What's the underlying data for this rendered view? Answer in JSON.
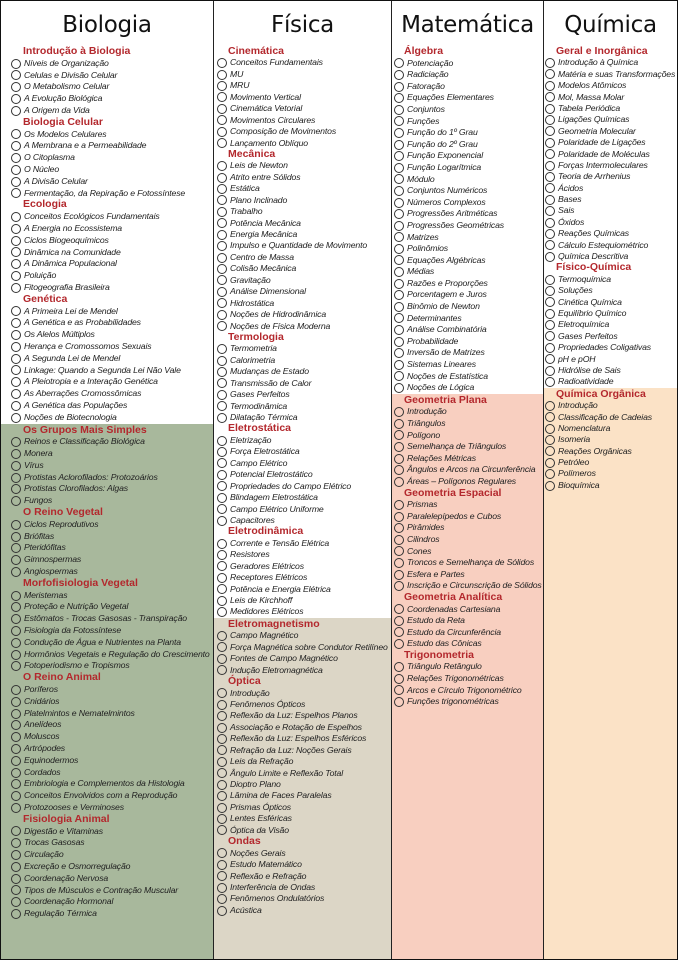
{
  "colors": {
    "section_title": "#b3282d",
    "white": "#ffffff",
    "green": "#a8b89c",
    "beige": "#dcd6c6",
    "pink": "#f8cfc0",
    "peach": "#fbe2c6"
  },
  "columns": [
    {
      "title": "Biologia",
      "groups": [
        {
          "bg": "#ffffff",
          "sections": [
            {
              "title": "Introdução à Biologia",
              "items": [
                "Níveis de Organização",
                "Celulas e Divisão Celular",
                "O Metabolismo Celular",
                "A Evolução Biológica",
                "A Origem da Vida"
              ]
            },
            {
              "title": "Biologia Celular",
              "items": [
                "Os Modelos Celulares",
                "A Membrana e a Permeabilidade",
                "O Citoplasma",
                "O Núcleo",
                "A Divisão Celular",
                "Fermentação, da Repiração e Fotossíntese"
              ]
            },
            {
              "title": "Ecologia",
              "items": [
                "Conceitos Ecológicos Fundamentais",
                "A Energia no Ecossistema",
                "Ciclos Biogeoquímicos",
                "Dinâmica na Comunidade",
                "A Dinâmica Populacional",
                "Poluição",
                "Fitogeografia Brasileira"
              ]
            },
            {
              "title": "Genética",
              "items": [
                "A Primeira Lei de Mendel",
                "A Genética e as Probabilidades",
                "Os Alelos Múltiplos",
                "Herança e Cromossomos Sexuais",
                "A Segunda Lei de Mendel",
                "Linkage: Quando a Segunda Lei Não Vale",
                "A Pleiotropia e a Interação Genética",
                "As Aberrações Cromossômicas",
                "A Genética das Populações",
                "Noções de Biotecnologia"
              ]
            }
          ]
        },
        {
          "bg": "#a8b89c",
          "sections": [
            {
              "title": "Os Grupos Mais Simples",
              "items": [
                "Reinos e Classificação Biológica",
                "Monera",
                "Vírus",
                "Protistas Aclorofilados: Protozoários",
                "Protistas Clorofilados: Algas",
                "Fungos"
              ]
            },
            {
              "title": "O Reino Vegetal",
              "items": [
                "Ciclos Reprodutivos",
                "Briófitas",
                "Pteridófitas",
                "Gimnospermas",
                "Angiospermas"
              ]
            },
            {
              "title": "Morfofisiologia Vegetal",
              "items": [
                "Meristemas",
                "Proteção e Nutrição Vegetal",
                "Estômatos - Trocas Gasosas - Transpiração",
                "Fisiologia da Fotossíntese",
                "Condução de Água e Nutrientes na Planta",
                "Hormônios Vegetais e Regulação do Crescimento",
                "Fotoperiodismo e Tropismos"
              ]
            },
            {
              "title": "O Reino Animal",
              "items": [
                "Poríferos",
                "Cnidários",
                "Platelmintos e Nematelmintos",
                "Anelídeos",
                "Moluscos",
                "Artrópodes",
                "Equinodermos",
                "Cordados",
                "Embriologia e Complementos da Histologia",
                "Conceitos Envolvidos com a Reprodução",
                "Protozooses e Verminoses"
              ]
            },
            {
              "title": "Fisiologia Animal",
              "items": [
                "Digestão e Vitaminas",
                "Trocas Gasosas",
                "Circulação",
                "Excreção e Osmorregulação",
                "Coordenação Nervosa",
                "Tipos de Músculos e Contração Muscular",
                "Coordenação Hormonal",
                "Regulação Térmica"
              ]
            }
          ]
        }
      ]
    },
    {
      "title": "Física",
      "groups": [
        {
          "bg": "#ffffff",
          "sections": [
            {
              "title": "Cinemática",
              "items": [
                "Conceitos Fundamentais",
                "MU",
                "MRU",
                "Movimento Vertical",
                "Cinemática Vetorial",
                "Movimentos Circulares",
                "Composição de Movimentos",
                "Lançamento Oblíquo"
              ]
            },
            {
              "title": "Mecânica",
              "items": [
                "Leis de Newton",
                "Atrito entre Sólidos",
                "Estática",
                "Plano Inclinado",
                "Trabalho",
                "Potência Mecânica",
                "Energia Mecânica",
                "Impulso e Quantidade de Movimento",
                "Centro de Massa",
                "Colisão Mecânica",
                "Gravitação",
                "Análise Dimensional",
                "Hidrostática",
                "Noções de Hidrodinâmica",
                "Noções de Física Moderna"
              ]
            },
            {
              "title": "Termologia",
              "items": [
                "Termometria",
                "Calorimetria",
                "Mudanças de Estado",
                "Transmissão de Calor",
                "Gases Perfeitos",
                "Termodinâmica",
                "Dilatação Térmica"
              ]
            },
            {
              "title": "Eletrostática",
              "items": [
                "Eletrização",
                "Força Eletrostática",
                "Campo Elétrico",
                "Potencial Eletrostático",
                "Propriedades do Campo Elétrico",
                "Blindagem Eletrostática",
                "Campo Elétrico Uniforme",
                "Capacitores"
              ]
            },
            {
              "title": "Eletrodinâmica",
              "items": [
                "Corrente e Tensão Elétrica",
                "Resistores",
                "Geradores Elétricos",
                "Receptores Elétricos",
                "Potência e Energia Elétrica",
                "Leis de Kirchhoff",
                "Medidores Elétricos"
              ]
            }
          ]
        },
        {
          "bg": "#dcd6c6",
          "sections": [
            {
              "title": "Eletromagnetismo",
              "items": [
                "Campo Magnético",
                "Força Magnética sobre Condutor Retilíneo",
                "Fontes de Campo Magnético",
                "Indução Eletromagnética"
              ]
            },
            {
              "title": "Óptica",
              "items": [
                "Introdução",
                "Fenômenos Ópticos",
                "Reflexão da Luz: Espelhos Planos",
                "Associação e Rotação de Espelhos",
                "Reflexão da Luz: Espelhos Esféricos",
                "Refração da Luz: Noções Gerais",
                "Leis da Refração",
                "Ângulo Limite e Reflexão Total",
                "Dioptro Plano",
                "Lâmina de Faces Paralelas",
                "Prismas Ópticos",
                "Lentes Esféricas",
                "Óptica da Visão"
              ]
            },
            {
              "title": "Ondas",
              "items": [
                "Noções Gerais",
                "Estudo Matemático",
                "Reflexão e Refração",
                "Interferência de Ondas",
                "Fenômenos Ondulatórios",
                "Acústica"
              ]
            }
          ]
        }
      ]
    },
    {
      "title": "Matemática",
      "groups": [
        {
          "bg": "#ffffff",
          "sections": [
            {
              "title": "Álgebra",
              "items": [
                "Potenciação",
                "Radiciação",
                "Fatoração",
                "Equações Elementares",
                "Conjuntos",
                "Funções",
                "Função do 1º Grau",
                "Função do 2º Grau",
                "Função Exponencial",
                "Função Logarítmica",
                "Módulo",
                "Conjuntos Numéricos",
                "Números Complexos",
                "Progressões Aritméticas",
                "Progressões Geométricas",
                "Matrizes",
                "Polinômios",
                "Equações Algébricas",
                "Médias",
                "Razões e Proporções",
                "Porcentagem e Juros",
                "Binômio de Newton",
                "Determinantes",
                "Análise Combinatória",
                "Probabilidade",
                "Inversão de Matrizes",
                "Sistemas Lineares",
                "Noções de Estatística",
                "Noções de Lógica"
              ]
            }
          ]
        },
        {
          "bg": "#f8cfc0",
          "sections": [
            {
              "title": "Geometria Plana",
              "items": [
                "Introdução",
                "Triângulos",
                "Polígono",
                "Semelhança de Triângulos",
                "Relações Métricas",
                "Ângulos e Arcos na Circunferência",
                "Áreas – Polígonos Regulares"
              ]
            },
            {
              "title": "Geometria Espacial",
              "items": [
                "Prismas",
                "Paralelepípedos e Cubos",
                "Pirâmides",
                "Cilindros",
                "Cones",
                "Troncos e Semelhança de Sólidos",
                "Esfera e Partes",
                "Inscrição e Circunscrição de Sólidos"
              ]
            },
            {
              "title": "Geometria Analítica",
              "items": [
                "Coordenadas Cartesiana",
                "Estudo da Reta",
                "Estudo da Circunferência",
                "Estudo das Cônicas"
              ]
            },
            {
              "title": "Trigonometria",
              "items": [
                "Triângulo Retângulo",
                "Relações Trigonométricas",
                "Arcos e Círculo Trigonométrico",
                "Funções trigonométricas"
              ]
            }
          ]
        }
      ]
    },
    {
      "title": "Química",
      "groups": [
        {
          "bg": "#ffffff",
          "sections": [
            {
              "title": "Geral e Inorgânica",
              "items": [
                "Introdução à Química",
                "Matéria e suas Transformações",
                "Modelos Atômicos",
                "Mol, Massa Molar",
                "Tabela Periódica",
                "Ligações Químicas",
                "Geometria Molecular",
                "Polaridade de Ligações",
                "Polaridade de Moléculas",
                "Forças Intermoleculares",
                "Teoria de Arrhenius",
                "Ácidos",
                "Bases",
                "Sais",
                "Óxidos",
                "Reações Químicas",
                "Cálculo Estequiométrico",
                "Química Descritiva"
              ]
            },
            {
              "title": "Físico-Química",
              "items": [
                "Termoquímica",
                "Soluções",
                "Cinética Química",
                "Equilíbrio Químico",
                "Eletroquímica",
                "Gases Perfeitos",
                "Propriedades Coligativas",
                "pH e pOH",
                "Hidrólise de Sais",
                "Radioatividade"
              ]
            }
          ]
        },
        {
          "bg": "#fbe2c6",
          "sections": [
            {
              "title": "Química Orgânica",
              "items": [
                "Introdução",
                "Classificação de Cadeias",
                "Nomenclatura",
                "Isomeria",
                "Reações Orgânicas",
                "Petróleo",
                "Polímeros",
                "Bioquímica"
              ]
            }
          ]
        }
      ]
    }
  ]
}
